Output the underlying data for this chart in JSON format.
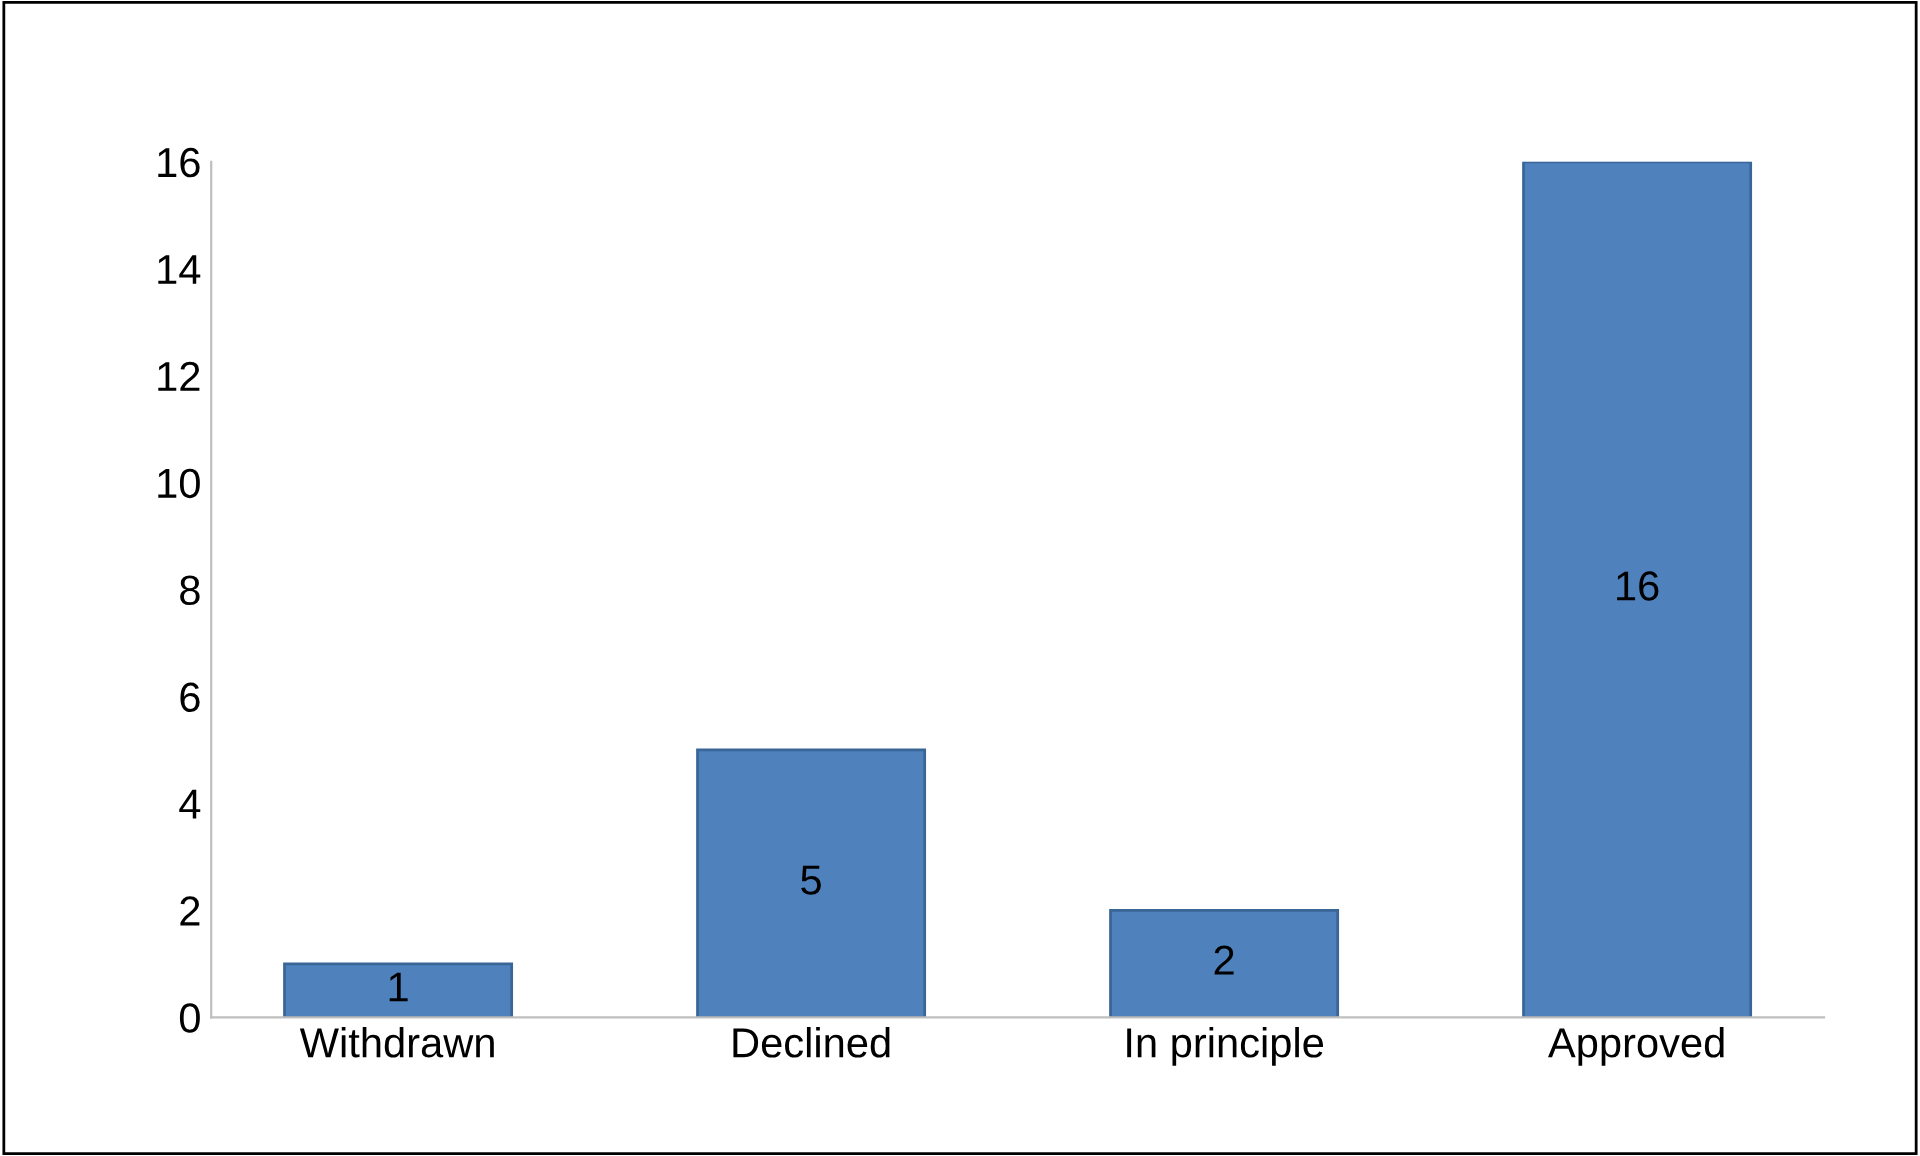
{
  "chart_data": {
    "type": "bar",
    "categories": [
      "Withdrawn",
      "Declined",
      "In principle",
      "Approved"
    ],
    "values": [
      1,
      5,
      2,
      16
    ],
    "color": "#4f81bd",
    "ylim": [
      0,
      16
    ],
    "yticks": [
      0,
      2,
      4,
      6,
      8,
      10,
      12,
      14,
      16
    ],
    "grid": false,
    "data_labels": true
  }
}
